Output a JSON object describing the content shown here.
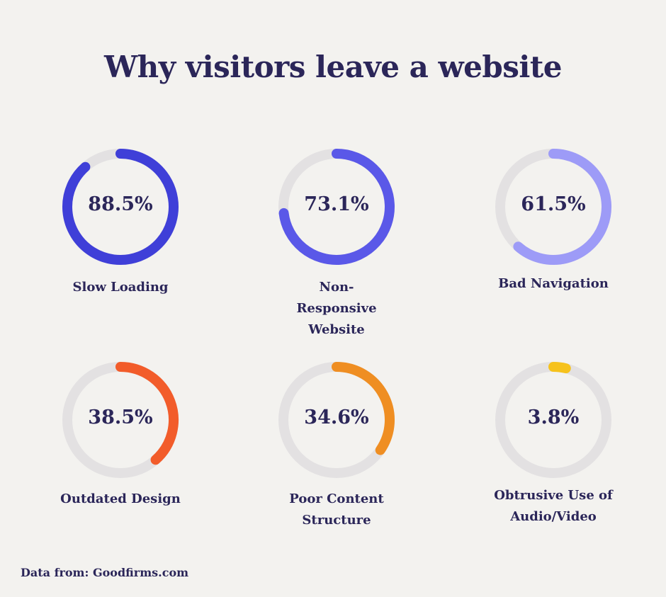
{
  "title": "Why visitors leave a website",
  "source": "Data from: Goodfirms.com",
  "chart_data": {
    "type": "donut",
    "unit": "%",
    "track_color": "#e3e1e2",
    "items": [
      {
        "label": "Slow Loading",
        "value": 88.5,
        "display": "88.5%",
        "color": "#3f3fd8"
      },
      {
        "label": "Non-Responsive Website",
        "value": 73.1,
        "display": "73.1%",
        "color": "#5a58e8"
      },
      {
        "label": "Bad Navigation",
        "value": 61.5,
        "display": "61.5%",
        "color": "#9d9bf7"
      },
      {
        "label": "Outdated Design",
        "value": 38.5,
        "display": "38.5%",
        "color": "#f25c2a"
      },
      {
        "label": "Poor Content Structure",
        "value": 34.6,
        "display": "34.6%",
        "color": "#ef8e22"
      },
      {
        "label": "Obtrusive Use of Audio/Video",
        "value": 3.8,
        "display": "3.8%",
        "color": "#f6c21c"
      }
    ]
  }
}
